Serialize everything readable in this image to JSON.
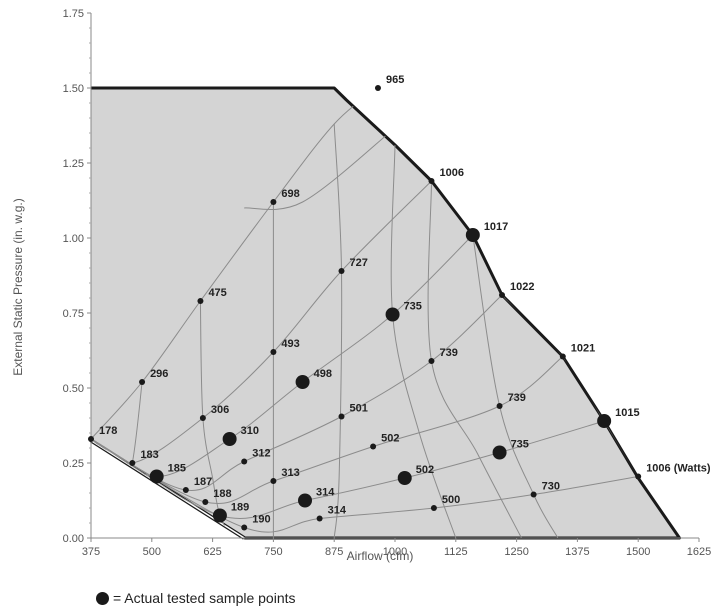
{
  "chart_data": {
    "type": "scatter",
    "xlabel": "Airflow (cfm)",
    "ylabel": "External Static Pressure (in. w.g.)",
    "xlim": [
      375,
      1625
    ],
    "ylim": [
      0,
      1.75
    ],
    "x_ticks": [
      "375",
      "500",
      "625",
      "750",
      "875",
      "1000",
      "1125",
      "1250",
      "1375",
      "1500",
      "1625"
    ],
    "y_ticks": [
      "0.00",
      "0.25",
      "0.50",
      "0.75",
      "1.00",
      "1.25",
      "1.50",
      "1.75"
    ],
    "grid": false,
    "colors": {
      "region_fill": "#d4d4d4",
      "boundary": "#1a1a1a",
      "curves": "#8c8c8c",
      "points": "#1a1a1a"
    },
    "envelope": {
      "x": [
        375,
        375,
        875,
        900,
        1000,
        1075,
        1160,
        1220,
        1345,
        1430,
        1500,
        1585,
        690
      ],
      "y": [
        0.325,
        1.5,
        1.5,
        1.46,
        1.31,
        1.19,
        1.01,
        0.81,
        0.605,
        0.39,
        0.2,
        0,
        0
      ]
    },
    "fan_curves": [
      {
        "x": [
          375,
          480,
          600,
          750,
          875,
          965
        ],
        "y": [
          0.33,
          0.52,
          0.79,
          1.12,
          1.38,
          1.5
        ]
      },
      {
        "x": [
          375,
          460,
          605,
          750,
          890,
          1075
        ],
        "y": [
          0.33,
          0.25,
          0.4,
          0.62,
          0.89,
          1.19
        ]
      },
      {
        "x": [
          375,
          510,
          660,
          810,
          995,
          1160
        ],
        "y": [
          0.33,
          0.205,
          0.33,
          0.52,
          0.745,
          1.01
        ]
      },
      {
        "x": [
          375,
          570,
          690,
          890,
          1075,
          1220
        ],
        "y": [
          0.33,
          0.16,
          0.255,
          0.405,
          0.59,
          0.81
        ]
      },
      {
        "x": [
          375,
          610,
          750,
          955,
          1215,
          1345
        ],
        "y": [
          0.33,
          0.12,
          0.19,
          0.305,
          0.44,
          0.605
        ]
      },
      {
        "x": [
          375,
          640,
          815,
          1020,
          1215,
          1430
        ],
        "y": [
          0.33,
          0.075,
          0.125,
          0.2,
          0.285,
          0.39
        ]
      },
      {
        "x": [
          375,
          690,
          845,
          1080,
          1285,
          1500
        ],
        "y": [
          0.33,
          0.035,
          0.065,
          0.1,
          0.145,
          0.205
        ]
      }
    ],
    "system_curves": [
      {
        "x": [
          480,
          460,
          430
        ],
        "y": [
          0.52,
          0.25,
          0.09
        ]
      },
      {
        "x": [
          600,
          605,
          625,
          640,
          665
        ],
        "y": [
          0.79,
          0.4,
          0.2,
          0.075,
          0.0
        ]
      },
      {
        "x": [
          750,
          750,
          750,
          750,
          750
        ],
        "y": [
          1.12,
          0.62,
          0.36,
          0.19,
          0.0
        ]
      },
      {
        "x": [
          875,
          890,
          885,
          875
        ],
        "y": [
          1.38,
          0.89,
          0.2,
          0.0
        ]
      },
      {
        "x": [
          1000,
          995,
          1050,
          1125
        ],
        "y": [
          1.31,
          0.745,
          0.35,
          0.0
        ]
      },
      {
        "x": [
          1075,
          1075,
          1170,
          1260
        ],
        "y": [
          1.19,
          0.59,
          0.28,
          0.0
        ]
      },
      {
        "x": [
          1160,
          1215,
          1285,
          1335
        ],
        "y": [
          1.01,
          0.44,
          0.145,
          0.0
        ]
      },
      {
        "x": [
          690,
          810,
          995
        ],
        "y": [
          1.1,
          1.12,
          1.36
        ]
      },
      {
        "x": [
          1220,
          1345,
          1430,
          1500
        ],
        "y": [
          0.81,
          0.605,
          0.39,
          0.205
        ]
      }
    ],
    "points": [
      {
        "x": 480,
        "y": 0.52,
        "label": "296",
        "sampled": false
      },
      {
        "x": 460,
        "y": 0.25,
        "label": "183",
        "sampled": false
      },
      {
        "x": 375,
        "y": 0.33,
        "label": "178",
        "sampled": false
      },
      {
        "x": 600,
        "y": 0.79,
        "label": "475",
        "sampled": false
      },
      {
        "x": 605,
        "y": 0.4,
        "label": "306",
        "sampled": false
      },
      {
        "x": 570,
        "y": 0.16,
        "label": "187",
        "sampled": false
      },
      {
        "x": 750,
        "y": 1.12,
        "label": "698",
        "sampled": false
      },
      {
        "x": 750,
        "y": 0.62,
        "label": "493",
        "sampled": false
      },
      {
        "x": 690,
        "y": 0.255,
        "label": "312",
        "sampled": false
      },
      {
        "x": 610,
        "y": 0.12,
        "label": "188",
        "sampled": false
      },
      {
        "x": 965,
        "y": 1.5,
        "label": "965",
        "sampled": false
      },
      {
        "x": 890,
        "y": 0.89,
        "label": "727",
        "sampled": false
      },
      {
        "x": 750,
        "y": 0.19,
        "label": "313",
        "sampled": false
      },
      {
        "x": 890,
        "y": 0.405,
        "label": "501",
        "sampled": false
      },
      {
        "x": 955,
        "y": 0.305,
        "label": "502",
        "sampled": false
      },
      {
        "x": 845,
        "y": 0.065,
        "label": "314",
        "sampled": false
      },
      {
        "x": 690,
        "y": 0.035,
        "label": "190",
        "sampled": false
      },
      {
        "x": 1075,
        "y": 1.19,
        "label": "1006",
        "sampled": false
      },
      {
        "x": 1075,
        "y": 0.59,
        "label": "739",
        "sampled": false
      },
      {
        "x": 1215,
        "y": 0.44,
        "label": "739",
        "sampled": false
      },
      {
        "x": 1080,
        "y": 0.1,
        "label": "500",
        "sampled": false
      },
      {
        "x": 1220,
        "y": 0.81,
        "label": "1022",
        "sampled": false
      },
      {
        "x": 1345,
        "y": 0.605,
        "label": "1021",
        "sampled": false
      },
      {
        "x": 1285,
        "y": 0.145,
        "label": "730",
        "sampled": false
      },
      {
        "x": 1500,
        "y": 0.205,
        "label": "1006 (Watts)",
        "sampled": false
      },
      {
        "x": 510,
        "y": 0.205,
        "label": "185",
        "sampled": true
      },
      {
        "x": 640,
        "y": 0.075,
        "label": "189",
        "sampled": true
      },
      {
        "x": 660,
        "y": 0.33,
        "label": "310",
        "sampled": true
      },
      {
        "x": 815,
        "y": 0.125,
        "label": "314",
        "sampled": true
      },
      {
        "x": 810,
        "y": 0.52,
        "label": "498",
        "sampled": true
      },
      {
        "x": 1020,
        "y": 0.2,
        "label": "502",
        "sampled": true
      },
      {
        "x": 995,
        "y": 0.745,
        "label": "735",
        "sampled": true
      },
      {
        "x": 1215,
        "y": 0.285,
        "label": "735",
        "sampled": true
      },
      {
        "x": 1160,
        "y": 1.01,
        "label": "1017",
        "sampled": true
      },
      {
        "x": 1430,
        "y": 0.39,
        "label": "1015",
        "sampled": true
      }
    ]
  },
  "legend": {
    "text": "= Actual tested sample points"
  }
}
